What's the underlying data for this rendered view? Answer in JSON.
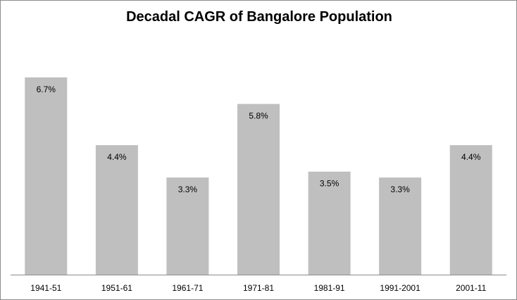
{
  "chart_data": {
    "type": "bar",
    "title": "Decadal CAGR of Bangalore Population",
    "xlabel": "",
    "ylabel": "",
    "categories": [
      "1941-51",
      "1951-61",
      "1961-71",
      "1971-81",
      "1981-91",
      "1991-2001",
      "2001-11"
    ],
    "values": [
      6.7,
      4.4,
      3.3,
      5.8,
      3.5,
      3.3,
      4.4
    ],
    "data_labels": [
      "6.7%",
      "4.4%",
      "3.3%",
      "5.8%",
      "3.5%",
      "3.3%",
      "4.4%"
    ],
    "ylim": [
      0,
      8
    ],
    "grid": false,
    "legend": "none",
    "colors": {
      "bar": "#bfbfbf",
      "axis": "#8c8c8c"
    }
  }
}
